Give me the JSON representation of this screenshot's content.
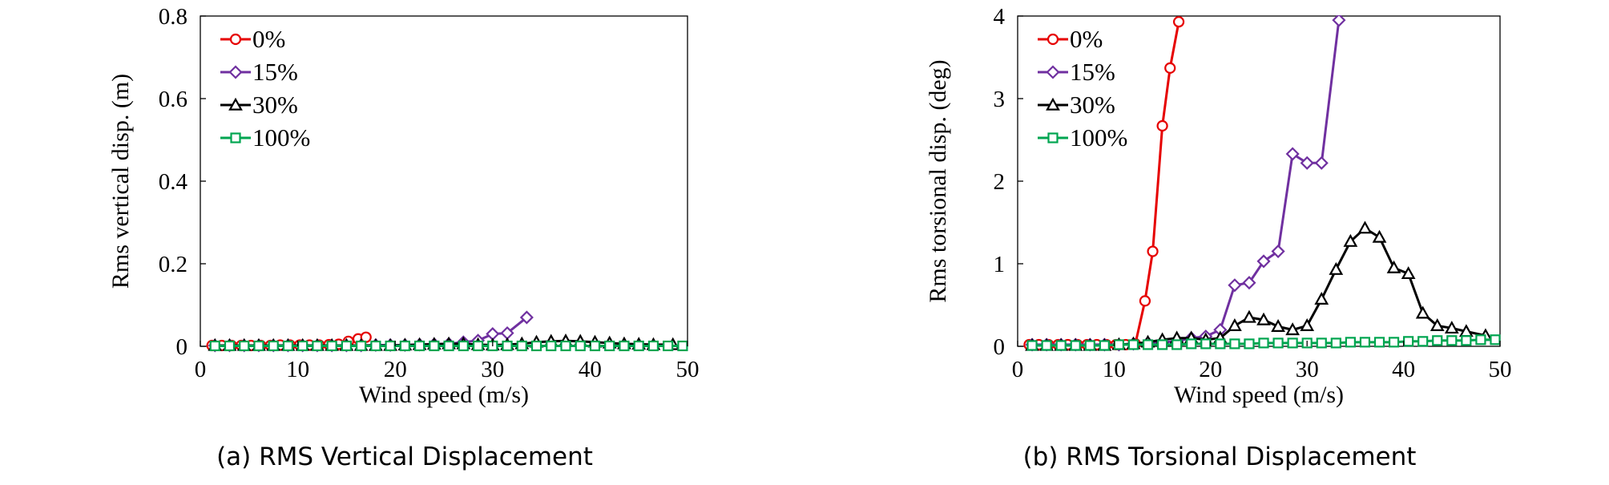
{
  "chart_data": [
    {
      "type": "line",
      "caption": "(a) RMS Vertical Displacement",
      "xlabel": "Wind speed (m/s)",
      "ylabel": "Rms vertical disp. (m)",
      "xlim": [
        0,
        50
      ],
      "ylim": [
        0,
        0.8
      ],
      "xticks": [
        0,
        10,
        20,
        30,
        40,
        50
      ],
      "yticks": [
        0,
        0.2,
        0.4,
        0.6,
        0.8
      ],
      "xtick_labels": [
        "0",
        "10",
        "20",
        "30",
        "40",
        "50"
      ],
      "ytick_labels": [
        "0",
        "0.2",
        "0.4",
        "0.6",
        "0.8"
      ],
      "grid": false,
      "legend_position": "top-left",
      "series": [
        {
          "name": "0%",
          "color": "#e60000",
          "marker": "circle",
          "x": [
            1.2,
            2.2,
            3.2,
            4.2,
            5.2,
            6.2,
            7.2,
            8.2,
            9.2,
            10.2,
            11.2,
            12.2,
            13.2,
            14.2,
            15.2,
            16.2,
            17
          ],
          "y": [
            0.002,
            0.002,
            0.002,
            0.002,
            0.002,
            0.002,
            0.002,
            0.003,
            0.003,
            0.003,
            0.003,
            0.003,
            0.004,
            0.005,
            0.012,
            0.018,
            0.022
          ]
        },
        {
          "name": "15%",
          "color": "#7030a0",
          "marker": "diamond",
          "x": [
            1.5,
            3,
            4.5,
            6,
            7.5,
            9,
            10.5,
            12,
            13.5,
            15,
            16.5,
            18,
            19.5,
            21,
            22.5,
            24,
            25.5,
            27,
            28.5,
            30,
            31.5,
            33.5
          ],
          "y": [
            0.002,
            0.002,
            0.002,
            0.002,
            0.002,
            0.002,
            0.002,
            0.002,
            0.002,
            0.002,
            0.002,
            0.003,
            0.003,
            0.003,
            0.004,
            0.005,
            0.006,
            0.01,
            0.014,
            0.03,
            0.032,
            0.07
          ]
        },
        {
          "name": "30%",
          "color": "#000000",
          "marker": "triangle",
          "x": [
            1.5,
            3,
            4.5,
            6,
            7.5,
            9,
            10.5,
            12,
            13.5,
            15,
            16.5,
            18,
            19.5,
            21,
            22.5,
            24,
            25.5,
            27,
            28.5,
            30,
            31.5,
            33,
            34.5,
            36,
            37.5,
            39,
            40.5,
            42,
            43.5,
            45,
            46.5,
            48.5
          ],
          "y": [
            0.002,
            0.002,
            0.002,
            0.002,
            0.002,
            0.002,
            0.002,
            0.002,
            0.002,
            0.002,
            0.002,
            0.002,
            0.002,
            0.003,
            0.004,
            0.005,
            0.006,
            0.006,
            0.004,
            0.003,
            0.004,
            0.006,
            0.01,
            0.012,
            0.013,
            0.012,
            0.01,
            0.008,
            0.006,
            0.005,
            0.004,
            0.004
          ]
        },
        {
          "name": "100%",
          "color": "#00a550",
          "marker": "square",
          "x": [
            1.5,
            3,
            4.5,
            6,
            7.5,
            9,
            10.5,
            12,
            13.5,
            15,
            16.5,
            18,
            19.5,
            21,
            22.5,
            24,
            25.5,
            27,
            28.5,
            30,
            31.5,
            33,
            34.5,
            36,
            37.5,
            39,
            40.5,
            42,
            43.5,
            45,
            46.5,
            48,
            49.5
          ],
          "y": [
            0.001,
            0.001,
            0.001,
            0.001,
            0.001,
            0.001,
            0.001,
            0.001,
            0.001,
            0.001,
            0.001,
            0.001,
            0.001,
            0.001,
            0.001,
            0.001,
            0.001,
            0.001,
            0.001,
            0.001,
            0.001,
            0.001,
            0.001,
            0.001,
            0.001,
            0.001,
            0.001,
            0.001,
            0.001,
            0.001,
            0.001,
            0.001,
            0.001
          ]
        }
      ]
    },
    {
      "type": "line",
      "caption": "(b) RMS Torsional Displacement",
      "xlabel": "Wind speed (m/s)",
      "ylabel": "Rms torsional disp. (deg)",
      "xlim": [
        0,
        50
      ],
      "ylim": [
        0,
        4
      ],
      "xticks": [
        0,
        10,
        20,
        30,
        40,
        50
      ],
      "yticks": [
        0,
        1,
        2,
        3,
        4
      ],
      "xtick_labels": [
        "0",
        "10",
        "20",
        "30",
        "40",
        "50"
      ],
      "ytick_labels": [
        "0",
        "1",
        "2",
        "3",
        "4"
      ],
      "grid": false,
      "legend_position": "top-left",
      "series": [
        {
          "name": "0%",
          "color": "#e60000",
          "marker": "circle",
          "x": [
            1.2,
            2.2,
            3.2,
            4.2,
            5.2,
            6.2,
            7.2,
            8.2,
            9.2,
            10.2,
            11.2,
            12.2,
            13.2,
            14,
            15,
            15.8,
            16.7
          ],
          "y": [
            0.02,
            0.02,
            0.02,
            0.02,
            0.02,
            0.02,
            0.02,
            0.02,
            0.02,
            0.02,
            0.02,
            0.03,
            0.55,
            1.15,
            2.67,
            3.37,
            3.93
          ]
        },
        {
          "name": "15%",
          "color": "#7030a0",
          "marker": "diamond",
          "x": [
            1.5,
            3,
            4.5,
            6,
            7.5,
            9,
            10.5,
            12,
            13.5,
            15,
            16.5,
            18,
            19.5,
            21,
            22.5,
            24,
            25.5,
            27,
            28.5,
            30,
            31.5,
            33.3
          ],
          "y": [
            0.02,
            0.02,
            0.02,
            0.02,
            0.02,
            0.02,
            0.02,
            0.03,
            0.04,
            0.05,
            0.06,
            0.1,
            0.12,
            0.2,
            0.74,
            0.77,
            1.03,
            1.15,
            2.33,
            2.22,
            2.22,
            3.95
          ]
        },
        {
          "name": "30%",
          "color": "#000000",
          "marker": "triangle",
          "x": [
            1.5,
            3,
            4.5,
            6,
            7.5,
            9,
            10.5,
            12,
            13.5,
            15,
            16.5,
            18,
            19.5,
            21,
            22.5,
            24,
            25.5,
            27,
            28.5,
            30,
            31.5,
            33,
            34.5,
            36,
            37.5,
            39,
            40.5,
            42,
            43.5,
            45,
            46.5,
            48.5
          ],
          "y": [
            0.01,
            0.01,
            0.01,
            0.01,
            0.01,
            0.01,
            0.02,
            0.03,
            0.05,
            0.08,
            0.1,
            0.1,
            0.08,
            0.1,
            0.25,
            0.35,
            0.32,
            0.24,
            0.2,
            0.25,
            0.57,
            0.93,
            1.27,
            1.43,
            1.32,
            0.95,
            0.88,
            0.4,
            0.25,
            0.22,
            0.18,
            0.13
          ]
        },
        {
          "name": "100%",
          "color": "#00a550",
          "marker": "square",
          "x": [
            1.5,
            3,
            4.5,
            6,
            7.5,
            9,
            10.5,
            12,
            13.5,
            15,
            16.5,
            18,
            19.5,
            21,
            22.5,
            24,
            25.5,
            27,
            28.5,
            30,
            31.5,
            33,
            34.5,
            36,
            37.5,
            39,
            40.5,
            42,
            43.5,
            45,
            46.5,
            48,
            49.5
          ],
          "y": [
            0.01,
            0.01,
            0.01,
            0.01,
            0.01,
            0.01,
            0.02,
            0.02,
            0.02,
            0.02,
            0.02,
            0.03,
            0.03,
            0.03,
            0.03,
            0.03,
            0.04,
            0.04,
            0.04,
            0.04,
            0.04,
            0.04,
            0.05,
            0.05,
            0.05,
            0.05,
            0.06,
            0.06,
            0.07,
            0.07,
            0.07,
            0.08,
            0.08
          ]
        }
      ]
    }
  ]
}
